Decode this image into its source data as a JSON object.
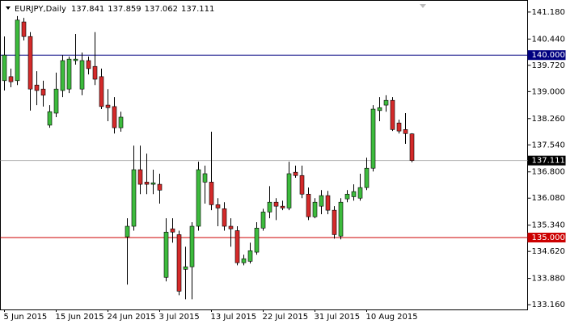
{
  "chart_data": {
    "type": "candlestick",
    "title": "EURJPY,Daily",
    "header_values": [
      137.841,
      137.859,
      137.062,
      137.111
    ],
    "categories": [
      "5 Jun 2015",
      null,
      null,
      null,
      null,
      null,
      null,
      null,
      "15 Jun 2015",
      null,
      null,
      null,
      null,
      null,
      null,
      null,
      "24 Jun 2015",
      null,
      null,
      null,
      null,
      null,
      null,
      null,
      "3 Jul 2015",
      null,
      null,
      null,
      null,
      null,
      null,
      null,
      "13 Jul 2015",
      null,
      null,
      null,
      null,
      null,
      null,
      null,
      "22 Jul 2015",
      null,
      null,
      null,
      null,
      null,
      null,
      null,
      "31 Jul 2015",
      null,
      null,
      null,
      null,
      null,
      null,
      null,
      "10 Aug 2015",
      null,
      null,
      null,
      null,
      null,
      null,
      null
    ],
    "open": [
      139.3,
      139.41,
      139.3,
      140.91,
      140.51,
      139.18,
      139.07,
      138.08,
      138.41,
      139.03,
      139.07,
      139.85,
      139.07,
      139.85,
      139.69,
      139.41,
      138.63,
      138.59,
      138.01,
      135.02,
      135.31,
      136.86,
      136.52,
      136.46,
      136.46,
      133.91,
      135.24,
      135.08,
      134.13,
      134.2,
      135.31,
      136.52,
      136.52,
      135.9,
      135.79,
      135.31,
      135.19,
      134.31,
      134.35,
      134.6,
      135.26,
      135.7,
      135.97,
      135.86,
      135.81,
      136.79,
      136.7,
      136.19,
      135.57,
      135.86,
      136.15,
      135.75,
      135.04,
      136.06,
      136.12,
      136.08,
      136.37,
      136.9,
      138.48,
      138.63,
      138.76,
      138.14,
      137.96,
      137.841
    ],
    "high": [
      140.51,
      139.63,
      141.07,
      141.02,
      140.63,
      139.56,
      139.3,
      138.63,
      139.52,
      140.0,
      139.96,
      140.58,
      140.07,
      139.96,
      140.63,
      139.63,
      139.07,
      138.85,
      138.45,
      135.53,
      137.52,
      137.52,
      137.3,
      136.86,
      136.75,
      135.53,
      135.53,
      135.19,
      134.75,
      135.42,
      137.08,
      136.97,
      137.9,
      136.08,
      135.97,
      135.53,
      135.31,
      134.53,
      134.86,
      135.42,
      135.79,
      136.41,
      136.08,
      136.01,
      137.08,
      136.97,
      136.97,
      136.37,
      136.08,
      136.3,
      136.28,
      135.86,
      136.08,
      136.3,
      136.46,
      136.75,
      137.19,
      138.63,
      138.85,
      138.9,
      138.85,
      138.23,
      138.41,
      137.859
    ],
    "low": [
      139.03,
      139.12,
      139.18,
      140.4,
      138.48,
      138.63,
      138.59,
      138.01,
      138.3,
      138.85,
      138.96,
      139.74,
      138.9,
      139.47,
      139.18,
      138.52,
      138.19,
      137.85,
      137.9,
      133.71,
      135.19,
      136.19,
      136.19,
      136.19,
      135.93,
      133.8,
      134.86,
      133.42,
      133.31,
      133.31,
      135.19,
      135.93,
      135.75,
      135.31,
      135.19,
      134.75,
      134.24,
      134.24,
      134.29,
      134.53,
      135.19,
      135.53,
      135.48,
      135.75,
      135.75,
      136.64,
      136.08,
      135.48,
      135.53,
      135.64,
      135.64,
      134.97,
      134.95,
      135.97,
      136.01,
      136.01,
      136.3,
      136.81,
      138.19,
      138.45,
      137.92,
      137.85,
      137.57,
      137.062
    ],
    "close": [
      140.0,
      139.27,
      140.96,
      140.51,
      139.07,
      139.03,
      138.9,
      138.45,
      139.07,
      139.85,
      139.89,
      139.89,
      139.85,
      139.63,
      139.34,
      138.59,
      138.56,
      138.01,
      138.3,
      135.31,
      136.86,
      136.46,
      136.46,
      136.5,
      136.3,
      135.15,
      135.15,
      133.53,
      134.2,
      135.31,
      136.86,
      136.75,
      135.9,
      135.81,
      135.31,
      135.24,
      134.31,
      134.42,
      134.64,
      135.26,
      135.7,
      135.97,
      135.86,
      135.81,
      136.75,
      136.7,
      136.19,
      135.57,
      135.97,
      136.15,
      135.75,
      135.08,
      135.97,
      136.19,
      136.26,
      136.37,
      136.9,
      138.52,
      138.56,
      138.76,
      137.96,
      137.92,
      137.85,
      137.111
    ],
    "up_color": "#3dbb3d",
    "down_color": "#d42a2a",
    "ylim": [
      133.03,
      141.51
    ],
    "yticks": [
      {
        "value": 141.18,
        "label": "141.180"
      },
      {
        "value": 140.44,
        "label": "140.440"
      },
      {
        "value": 139.72,
        "label": "139.720"
      },
      {
        "value": 139.0,
        "label": "139.000"
      },
      {
        "value": 138.26,
        "label": "138.260"
      },
      {
        "value": 137.54,
        "label": "137.540"
      },
      {
        "value": 136.8,
        "label": "136.800"
      },
      {
        "value": 136.08,
        "label": "136.080"
      },
      {
        "value": 135.34,
        "label": "135.340"
      },
      {
        "value": 134.62,
        "label": "134.620"
      },
      {
        "value": 133.88,
        "label": "133.880"
      },
      {
        "value": 133.16,
        "label": "133.160"
      }
    ],
    "hlines": [
      {
        "value": 140.0,
        "label": "140.000",
        "color": "#000080"
      },
      {
        "value": 137.111,
        "label": "137.111",
        "color": "#b0b0b0",
        "tag_color": "#000000"
      },
      {
        "value": 135.0,
        "label": "135.000",
        "color": "#cc0000"
      }
    ]
  }
}
